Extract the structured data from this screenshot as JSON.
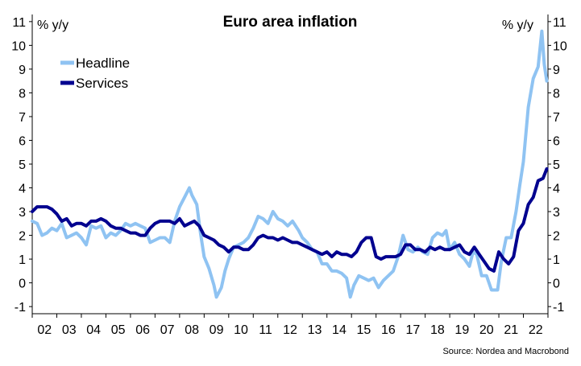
{
  "chart_data": {
    "type": "line",
    "title": "Euro area inflation",
    "ylabel_left": "% y/y",
    "ylabel_right": "% y/y",
    "ylim": [
      -1.3,
      11.3
    ],
    "yticks": [
      -1,
      0,
      1,
      2,
      3,
      4,
      5,
      6,
      7,
      8,
      9,
      10,
      11
    ],
    "xlim": [
      2002.0,
      2023.0
    ],
    "xtick_labels": [
      "02",
      "03",
      "04",
      "05",
      "06",
      "07",
      "08",
      "09",
      "10",
      "11",
      "12",
      "13",
      "14",
      "15",
      "16",
      "17",
      "18",
      "19",
      "20",
      "21",
      "22"
    ],
    "legend_position": "top-left",
    "source": "Source: Nordea and Macrobond",
    "series": [
      {
        "name": "Headline",
        "color": "#8fc3f2",
        "points": [
          [
            2002.0,
            2.6
          ],
          [
            2002.2,
            2.5
          ],
          [
            2002.4,
            2.0
          ],
          [
            2002.6,
            2.1
          ],
          [
            2002.8,
            2.3
          ],
          [
            2003.0,
            2.2
          ],
          [
            2003.2,
            2.5
          ],
          [
            2003.4,
            1.9
          ],
          [
            2003.6,
            2.0
          ],
          [
            2003.8,
            2.1
          ],
          [
            2004.0,
            1.9
          ],
          [
            2004.2,
            1.6
          ],
          [
            2004.4,
            2.4
          ],
          [
            2004.6,
            2.3
          ],
          [
            2004.8,
            2.4
          ],
          [
            2005.0,
            1.9
          ],
          [
            2005.2,
            2.1
          ],
          [
            2005.4,
            2.0
          ],
          [
            2005.6,
            2.2
          ],
          [
            2005.8,
            2.5
          ],
          [
            2006.0,
            2.4
          ],
          [
            2006.2,
            2.5
          ],
          [
            2006.4,
            2.4
          ],
          [
            2006.6,
            2.3
          ],
          [
            2006.8,
            1.7
          ],
          [
            2007.0,
            1.8
          ],
          [
            2007.2,
            1.9
          ],
          [
            2007.4,
            1.9
          ],
          [
            2007.6,
            1.7
          ],
          [
            2007.8,
            2.6
          ],
          [
            2008.0,
            3.2
          ],
          [
            2008.2,
            3.6
          ],
          [
            2008.4,
            4.0
          ],
          [
            2008.5,
            3.7
          ],
          [
            2008.7,
            3.3
          ],
          [
            2008.85,
            2.1
          ],
          [
            2009.0,
            1.1
          ],
          [
            2009.2,
            0.6
          ],
          [
            2009.4,
            -0.1
          ],
          [
            2009.5,
            -0.6
          ],
          [
            2009.7,
            -0.2
          ],
          [
            2009.85,
            0.5
          ],
          [
            2010.0,
            1.0
          ],
          [
            2010.2,
            1.5
          ],
          [
            2010.4,
            1.6
          ],
          [
            2010.6,
            1.7
          ],
          [
            2010.8,
            1.9
          ],
          [
            2011.0,
            2.3
          ],
          [
            2011.2,
            2.8
          ],
          [
            2011.4,
            2.7
          ],
          [
            2011.6,
            2.5
          ],
          [
            2011.8,
            3.0
          ],
          [
            2012.0,
            2.7
          ],
          [
            2012.2,
            2.6
          ],
          [
            2012.4,
            2.4
          ],
          [
            2012.6,
            2.6
          ],
          [
            2012.85,
            2.2
          ],
          [
            2013.0,
            1.9
          ],
          [
            2013.2,
            1.7
          ],
          [
            2013.4,
            1.4
          ],
          [
            2013.6,
            1.3
          ],
          [
            2013.8,
            0.8
          ],
          [
            2014.0,
            0.8
          ],
          [
            2014.2,
            0.5
          ],
          [
            2014.4,
            0.5
          ],
          [
            2014.6,
            0.4
          ],
          [
            2014.8,
            0.2
          ],
          [
            2014.95,
            -0.6
          ],
          [
            2015.1,
            -0.1
          ],
          [
            2015.3,
            0.3
          ],
          [
            2015.5,
            0.2
          ],
          [
            2015.7,
            0.1
          ],
          [
            2015.9,
            0.2
          ],
          [
            2016.1,
            -0.2
          ],
          [
            2016.3,
            0.1
          ],
          [
            2016.5,
            0.3
          ],
          [
            2016.7,
            0.5
          ],
          [
            2016.9,
            1.1
          ],
          [
            2017.1,
            2.0
          ],
          [
            2017.3,
            1.4
          ],
          [
            2017.5,
            1.3
          ],
          [
            2017.7,
            1.5
          ],
          [
            2017.9,
            1.3
          ],
          [
            2018.1,
            1.2
          ],
          [
            2018.3,
            1.9
          ],
          [
            2018.5,
            2.1
          ],
          [
            2018.7,
            2.0
          ],
          [
            2018.85,
            2.2
          ],
          [
            2019.0,
            1.4
          ],
          [
            2019.2,
            1.7
          ],
          [
            2019.4,
            1.2
          ],
          [
            2019.6,
            1.0
          ],
          [
            2019.8,
            0.7
          ],
          [
            2019.95,
            1.3
          ],
          [
            2020.1,
            1.2
          ],
          [
            2020.3,
            0.3
          ],
          [
            2020.5,
            0.3
          ],
          [
            2020.7,
            -0.3
          ],
          [
            2020.95,
            -0.3
          ],
          [
            2021.1,
            0.9
          ],
          [
            2021.3,
            1.9
          ],
          [
            2021.5,
            1.9
          ],
          [
            2021.7,
            3.0
          ],
          [
            2021.85,
            4.1
          ],
          [
            2022.0,
            5.1
          ],
          [
            2022.2,
            7.4
          ],
          [
            2022.4,
            8.6
          ],
          [
            2022.6,
            9.1
          ],
          [
            2022.75,
            10.6
          ],
          [
            2022.85,
            9.2
          ],
          [
            2022.95,
            8.5
          ]
        ]
      },
      {
        "name": "Services",
        "color": "#00008f",
        "points": [
          [
            2002.0,
            3.0
          ],
          [
            2002.2,
            3.2
          ],
          [
            2002.4,
            3.2
          ],
          [
            2002.6,
            3.2
          ],
          [
            2002.8,
            3.1
          ],
          [
            2003.0,
            2.9
          ],
          [
            2003.2,
            2.6
          ],
          [
            2003.4,
            2.7
          ],
          [
            2003.6,
            2.4
          ],
          [
            2003.8,
            2.5
          ],
          [
            2004.0,
            2.5
          ],
          [
            2004.2,
            2.4
          ],
          [
            2004.4,
            2.6
          ],
          [
            2004.6,
            2.6
          ],
          [
            2004.8,
            2.7
          ],
          [
            2005.0,
            2.6
          ],
          [
            2005.2,
            2.4
          ],
          [
            2005.4,
            2.3
          ],
          [
            2005.6,
            2.3
          ],
          [
            2005.8,
            2.2
          ],
          [
            2006.0,
            2.1
          ],
          [
            2006.2,
            2.1
          ],
          [
            2006.4,
            2.0
          ],
          [
            2006.6,
            2.0
          ],
          [
            2006.8,
            2.3
          ],
          [
            2007.0,
            2.5
          ],
          [
            2007.2,
            2.6
          ],
          [
            2007.4,
            2.6
          ],
          [
            2007.6,
            2.6
          ],
          [
            2007.8,
            2.5
          ],
          [
            2008.0,
            2.7
          ],
          [
            2008.2,
            2.4
          ],
          [
            2008.4,
            2.5
          ],
          [
            2008.6,
            2.6
          ],
          [
            2008.8,
            2.4
          ],
          [
            2009.0,
            2.0
          ],
          [
            2009.2,
            1.9
          ],
          [
            2009.4,
            1.8
          ],
          [
            2009.6,
            1.6
          ],
          [
            2009.8,
            1.5
          ],
          [
            2010.0,
            1.3
          ],
          [
            2010.2,
            1.5
          ],
          [
            2010.4,
            1.5
          ],
          [
            2010.6,
            1.4
          ],
          [
            2010.8,
            1.4
          ],
          [
            2011.0,
            1.6
          ],
          [
            2011.2,
            1.9
          ],
          [
            2011.4,
            2.0
          ],
          [
            2011.6,
            1.9
          ],
          [
            2011.8,
            1.9
          ],
          [
            2012.0,
            1.8
          ],
          [
            2012.2,
            1.9
          ],
          [
            2012.4,
            1.8
          ],
          [
            2012.6,
            1.7
          ],
          [
            2012.8,
            1.7
          ],
          [
            2013.0,
            1.6
          ],
          [
            2013.2,
            1.5
          ],
          [
            2013.4,
            1.4
          ],
          [
            2013.6,
            1.3
          ],
          [
            2013.8,
            1.2
          ],
          [
            2014.0,
            1.3
          ],
          [
            2014.2,
            1.1
          ],
          [
            2014.4,
            1.3
          ],
          [
            2014.6,
            1.2
          ],
          [
            2014.8,
            1.2
          ],
          [
            2015.0,
            1.1
          ],
          [
            2015.2,
            1.3
          ],
          [
            2015.4,
            1.7
          ],
          [
            2015.6,
            1.9
          ],
          [
            2015.8,
            1.9
          ],
          [
            2016.0,
            1.1
          ],
          [
            2016.2,
            1.0
          ],
          [
            2016.4,
            1.1
          ],
          [
            2016.6,
            1.1
          ],
          [
            2016.8,
            1.1
          ],
          [
            2017.0,
            1.2
          ],
          [
            2017.2,
            1.6
          ],
          [
            2017.4,
            1.6
          ],
          [
            2017.6,
            1.4
          ],
          [
            2017.8,
            1.4
          ],
          [
            2018.0,
            1.3
          ],
          [
            2018.2,
            1.5
          ],
          [
            2018.4,
            1.4
          ],
          [
            2018.6,
            1.5
          ],
          [
            2018.8,
            1.4
          ],
          [
            2019.0,
            1.4
          ],
          [
            2019.2,
            1.5
          ],
          [
            2019.4,
            1.6
          ],
          [
            2019.6,
            1.3
          ],
          [
            2019.8,
            1.2
          ],
          [
            2020.0,
            1.5
          ],
          [
            2020.2,
            1.2
          ],
          [
            2020.4,
            0.9
          ],
          [
            2020.6,
            0.6
          ],
          [
            2020.8,
            0.5
          ],
          [
            2021.0,
            1.3
          ],
          [
            2021.2,
            1.0
          ],
          [
            2021.4,
            0.8
          ],
          [
            2021.6,
            1.1
          ],
          [
            2021.8,
            2.2
          ],
          [
            2022.0,
            2.5
          ],
          [
            2022.2,
            3.3
          ],
          [
            2022.4,
            3.6
          ],
          [
            2022.6,
            4.3
          ],
          [
            2022.8,
            4.4
          ],
          [
            2022.95,
            4.8
          ]
        ]
      }
    ]
  }
}
